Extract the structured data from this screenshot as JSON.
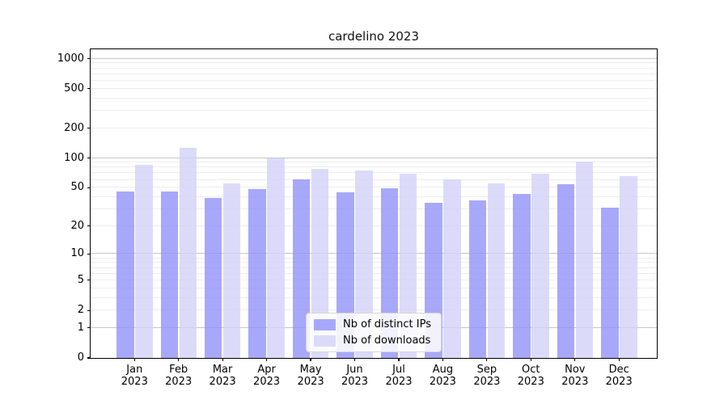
{
  "chart_data": {
    "type": "bar",
    "title": "cardelino 2023",
    "x_tick_months": [
      "Jan",
      "Feb",
      "Mar",
      "Apr",
      "May",
      "Jun",
      "Jul",
      "Aug",
      "Sep",
      "Oct",
      "Nov",
      "Dec"
    ],
    "x_tick_year": "2023",
    "series": [
      {
        "name": "Nb of distinct IPs",
        "color": "#a8a8fa",
        "fill": "rgba(146,146,249,0.8)",
        "values": [
          46,
          46,
          39,
          48,
          61,
          45,
          49,
          35,
          37,
          43,
          54,
          31
        ]
      },
      {
        "name": "Nb of downloads",
        "color": "#dbdbf9",
        "fill": "rgba(210,210,248,0.8)",
        "values": [
          85,
          127,
          55,
          100,
          78,
          75,
          69,
          61,
          55,
          69,
          92,
          65
        ]
      }
    ],
    "yscale": "log1p",
    "ylim": [
      0,
      1240
    ],
    "y_ticks": [
      0,
      1,
      2,
      5,
      10,
      20,
      50,
      100,
      200,
      500,
      1000
    ],
    "y_major_gridlines": [
      1,
      10,
      100,
      1000
    ],
    "y_minor_gridlines": [
      2,
      3,
      4,
      5,
      6,
      7,
      8,
      9,
      20,
      30,
      40,
      50,
      60,
      70,
      80,
      90,
      200,
      300,
      400,
      500,
      600,
      700,
      800,
      900
    ],
    "grid": true,
    "legend_position": "lower center",
    "xlabel": "",
    "ylabel": ""
  },
  "colors": {
    "major_grid": "#c6c6c6",
    "minor_grid": "#ededed",
    "axis": "#000000",
    "text": "#000000",
    "background": "#ffffff"
  }
}
